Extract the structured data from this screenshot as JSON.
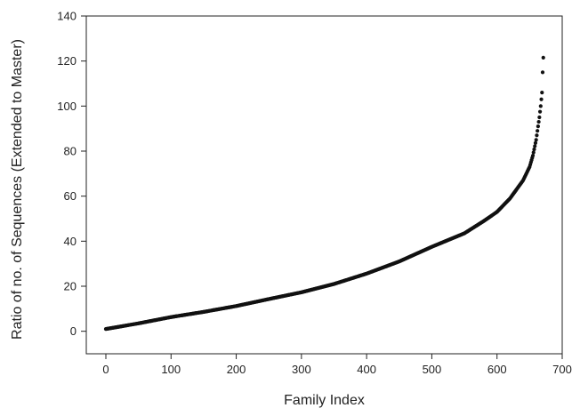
{
  "chart_data": {
    "type": "scatter",
    "title": "",
    "xlabel": "Family Index",
    "ylabel": "Ratio of no. of Sequences (Extended to Master)",
    "xlim": [
      -30,
      700
    ],
    "ylim": [
      -10,
      140
    ],
    "xticks": [
      0,
      100,
      200,
      300,
      400,
      500,
      600,
      700
    ],
    "yticks": [
      0,
      20,
      40,
      60,
      80,
      100,
      120,
      140
    ],
    "grid": false,
    "legend": "none",
    "marker_color": "#111111",
    "curve_points": [
      [
        0,
        1
      ],
      [
        50,
        3.5
      ],
      [
        100,
        6.3
      ],
      [
        150,
        8.6
      ],
      [
        200,
        11.2
      ],
      [
        250,
        14.3
      ],
      [
        300,
        17.3
      ],
      [
        350,
        21
      ],
      [
        400,
        25.6
      ],
      [
        450,
        31
      ],
      [
        500,
        37.5
      ],
      [
        550,
        43.5
      ],
      [
        580,
        49
      ],
      [
        600,
        53
      ],
      [
        620,
        59
      ],
      [
        640,
        67
      ],
      [
        650,
        73
      ],
      [
        655,
        78
      ],
      [
        660,
        85
      ],
      [
        665,
        95
      ],
      [
        667,
        100
      ],
      [
        669,
        106
      ],
      [
        670,
        115
      ],
      [
        671,
        121.5
      ]
    ],
    "point_count": 672
  }
}
